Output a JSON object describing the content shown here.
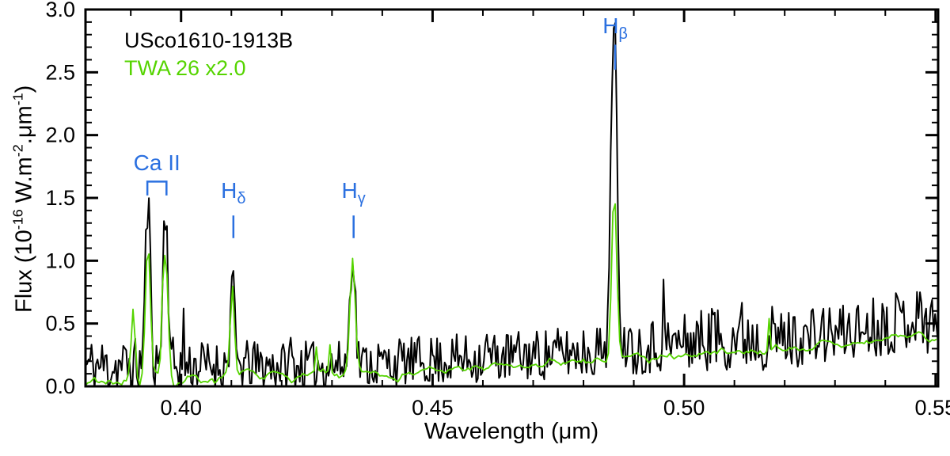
{
  "chart_data": {
    "type": "line",
    "title": "",
    "xlabel": "Wavelength (μm)",
    "ylabel": "Flux (10⁻¹⁶ W.m⁻².μm⁻¹)",
    "ylabel_parts": [
      "Flux (10",
      "-16",
      " W.m",
      "-2",
      ".μm",
      "-1",
      ")"
    ],
    "xlim": [
      0.381,
      0.5505
    ],
    "ylim": [
      0.0,
      3.0
    ],
    "x_ticks_major": [
      0.4,
      0.45,
      0.5,
      0.55
    ],
    "x_tick_labels": [
      "0.40",
      "0.45",
      "0.50",
      "0.55"
    ],
    "x_minor_step": 0.01,
    "y_ticks_major": [
      0.0,
      0.5,
      1.0,
      1.5,
      2.0,
      2.5,
      3.0
    ],
    "y_tick_labels": [
      "0.0",
      "0.5",
      "1.0",
      "1.5",
      "2.0",
      "2.5",
      "3.0"
    ],
    "y_minor_step": 0.1,
    "grid": false,
    "axis_color": "#000000",
    "annotation_color": "#2b70e0",
    "legend_position": "top-left",
    "legend": [
      {
        "label": "USco1610-1913B",
        "color": "#000000"
      },
      {
        "label": "TWA 26 x2.0",
        "color": "#55d400"
      }
    ],
    "annotations": [
      {
        "type": "text",
        "label": "Ca II",
        "x": 0.3952,
        "y": 1.72
      },
      {
        "type": "bracket",
        "x1": 0.3933,
        "x2": 0.3971,
        "y_top": 1.63,
        "y_leg": 1.52
      },
      {
        "type": "text",
        "label": "H",
        "sub": "δ",
        "x": 0.4104,
        "y": 1.5
      },
      {
        "type": "tick",
        "x": 0.4104,
        "y1": 1.18,
        "y2": 1.36
      },
      {
        "type": "text",
        "label": "H",
        "sub": "γ",
        "x": 0.4343,
        "y": 1.5
      },
      {
        "type": "tick",
        "x": 0.4343,
        "y1": 1.18,
        "y2": 1.36
      },
      {
        "type": "text",
        "label": "H",
        "sub": "β",
        "x": 0.4863,
        "y": 2.81
      },
      {
        "type": "tick",
        "x": 0.4863,
        "y1": 2.52,
        "y2": 2.72
      }
    ],
    "series": [
      {
        "name": "USco1610-1913B",
        "color": "#000000",
        "line_width": 2,
        "step": 0.0003,
        "noise_seed": 11,
        "noise_bias": 0.38,
        "smooth": 1,
        "spike_prob": 0.025,
        "spike_amp": 0.5,
        "floor": -0.02,
        "continuum": [
          [
            0.378,
            0.1
          ],
          [
            0.388,
            0.11
          ],
          [
            0.398,
            0.12
          ],
          [
            0.41,
            0.12
          ],
          [
            0.425,
            0.12
          ],
          [
            0.44,
            0.14
          ],
          [
            0.455,
            0.17
          ],
          [
            0.47,
            0.2
          ],
          [
            0.485,
            0.24
          ],
          [
            0.5,
            0.3
          ],
          [
            0.512,
            0.34
          ],
          [
            0.52,
            0.32
          ],
          [
            0.53,
            0.36
          ],
          [
            0.54,
            0.44
          ],
          [
            0.546,
            0.5
          ],
          [
            0.551,
            0.42
          ]
        ],
        "noise_envelope": [
          [
            0.378,
            0.5
          ],
          [
            0.39,
            0.45
          ],
          [
            0.405,
            0.4
          ],
          [
            0.43,
            0.38
          ],
          [
            0.455,
            0.4
          ],
          [
            0.48,
            0.42
          ],
          [
            0.5,
            0.46
          ],
          [
            0.512,
            0.6
          ],
          [
            0.522,
            0.46
          ],
          [
            0.535,
            0.48
          ],
          [
            0.545,
            0.52
          ],
          [
            0.551,
            0.55
          ]
        ],
        "emission_lines": [
          {
            "name": "Ca II K",
            "wavelength": 0.3934,
            "peak": 1.39,
            "sigma": 0.0005
          },
          {
            "name": "Ca II H",
            "wavelength": 0.3969,
            "peak": 1.37,
            "sigma": 0.0005
          },
          {
            "name": "H-delta",
            "wavelength": 0.4102,
            "peak": 0.8,
            "sigma": 0.0004
          },
          {
            "name": "H-gamma",
            "wavelength": 0.4341,
            "peak": 1.07,
            "sigma": 0.0005
          },
          {
            "name": "H-beta",
            "wavelength": 0.4861,
            "peak": 2.78,
            "sigma": 0.0006
          }
        ]
      },
      {
        "name": "TWA 26 x2.0",
        "color": "#55d400",
        "line_width": 1.8,
        "step": 0.00045,
        "noise_seed": 7,
        "noise_bias": 0.5,
        "smooth": 5,
        "spike_prob": 0.012,
        "spike_amp": 0.3,
        "floor": 0.0,
        "continuum": [
          [
            0.378,
            0.04
          ],
          [
            0.39,
            0.05
          ],
          [
            0.4,
            0.06
          ],
          [
            0.415,
            0.07
          ],
          [
            0.43,
            0.09
          ],
          [
            0.445,
            0.11
          ],
          [
            0.46,
            0.14
          ],
          [
            0.475,
            0.17
          ],
          [
            0.49,
            0.22
          ],
          [
            0.505,
            0.27
          ],
          [
            0.515,
            0.29
          ],
          [
            0.525,
            0.31
          ],
          [
            0.535,
            0.34
          ],
          [
            0.545,
            0.41
          ],
          [
            0.551,
            0.37
          ]
        ],
        "noise_envelope": [
          [
            0.378,
            0.24
          ],
          [
            0.4,
            0.2
          ],
          [
            0.43,
            0.18
          ],
          [
            0.48,
            0.16
          ],
          [
            0.551,
            0.16
          ]
        ],
        "emission_lines": [
          {
            "name": "Ca II K",
            "wavelength": 0.3934,
            "peak": 1.12,
            "sigma": 0.0005
          },
          {
            "name": "Ca II H",
            "wavelength": 0.3969,
            "peak": 1.05,
            "sigma": 0.0005
          },
          {
            "name": "blue-spike",
            "wavelength": 0.3905,
            "peak": 0.62,
            "sigma": 0.0004
          },
          {
            "name": "H-delta",
            "wavelength": 0.4102,
            "peak": 0.78,
            "sigma": 0.0004
          },
          {
            "name": "H-gamma",
            "wavelength": 0.4341,
            "peak": 0.97,
            "sigma": 0.0005
          },
          {
            "name": "H-beta",
            "wavelength": 0.4861,
            "peak": 1.53,
            "sigma": 0.0005
          }
        ]
      }
    ]
  }
}
